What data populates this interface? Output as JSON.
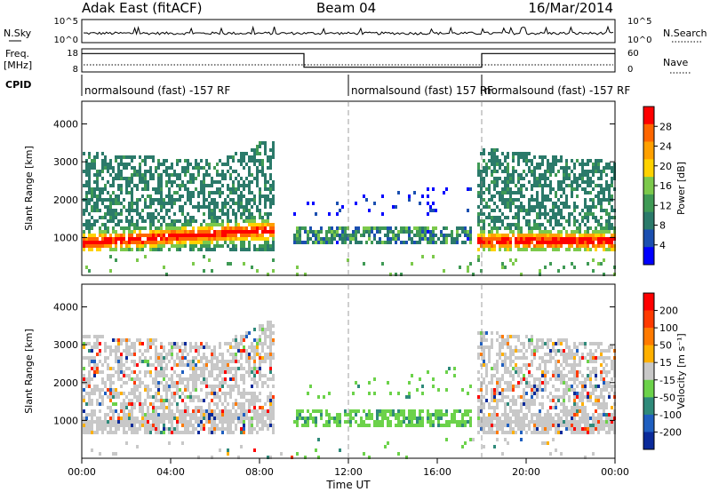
{
  "header": {
    "title": "Adak East (fitACF)",
    "beam": "Beam 04",
    "date": "16/Mar/2014"
  },
  "top_panels": {
    "nsky_label": "N.Sky",
    "nsky_ticks": [
      "10^5",
      "10^0"
    ],
    "nsearch_label": "N.Search",
    "nsearch_ticks": [
      "10^5",
      "10^0"
    ],
    "freq_label": "Freq.",
    "freq_unit": "[MHz]",
    "freq_ticks": [
      "18",
      "8"
    ],
    "nave_label": "Nave",
    "nave_ticks": [
      "60",
      "0"
    ],
    "cpid_label": "CPID",
    "cpid_segments": [
      {
        "label": "normalsound (fast) -157 RF",
        "start_h": 0,
        "end_h": 12
      },
      {
        "label": "normalsound (fast) 157 RF",
        "start_h": 12,
        "end_h": 18
      },
      {
        "label": "normalsound (fast) -157 RF",
        "start_h": 18,
        "end_h": 24
      }
    ],
    "freq_steps": [
      {
        "start_h": 0,
        "end_h": 10,
        "level": 0.85
      },
      {
        "start_h": 10,
        "end_h": 18,
        "level": 0.15
      },
      {
        "start_h": 18,
        "end_h": 24,
        "level": 0.85
      }
    ]
  },
  "chart_data": [
    {
      "type": "heatmap",
      "name": "power",
      "ylabel": "Slant Range [km]",
      "yticks": [
        "1000",
        "2000",
        "3000",
        "4000"
      ],
      "ylim": [
        0,
        4600
      ],
      "xlim": [
        0,
        24
      ],
      "colorbar_label": "Power [dB]",
      "colorbar_ticks": [
        "4",
        "8",
        "12",
        "16",
        "20",
        "24",
        "28"
      ],
      "colorbar_range": [
        0,
        32
      ],
      "colorbar_colors": [
        "#0000ff",
        "#1b4fb0",
        "#2b7a6a",
        "#3f9a55",
        "#7cc94b",
        "#ffd200",
        "#ffa000",
        "#ff6600",
        "#ff0000"
      ]
    },
    {
      "type": "heatmap",
      "name": "velocity",
      "ylabel": "Slant Range [km]",
      "yticks": [
        "1000",
        "2000",
        "3000",
        "4000"
      ],
      "ylim": [
        0,
        4600
      ],
      "xlim": [
        0,
        24
      ],
      "colorbar_label": "Velocity [m s⁻¹]",
      "colorbar_ticks": [
        "200",
        "100",
        "50",
        "15",
        "-15",
        "-50",
        "-100",
        "-200"
      ],
      "colorbar_colors": [
        "#0a2a9a",
        "#1f5fc0",
        "#2f8a7a",
        "#6cd24a",
        "#c8c8c8",
        "#ffb000",
        "#ff7a00",
        "#ff3a00",
        "#ff0000"
      ]
    }
  ],
  "time_axis": {
    "ticks": [
      "00:00",
      "04:00",
      "08:00",
      "12:00",
      "16:00",
      "20:00",
      "00:00"
    ],
    "label": "Time UT"
  },
  "colors": {
    "frame": "#000000",
    "ground_scatter": "#c8c8c8"
  }
}
